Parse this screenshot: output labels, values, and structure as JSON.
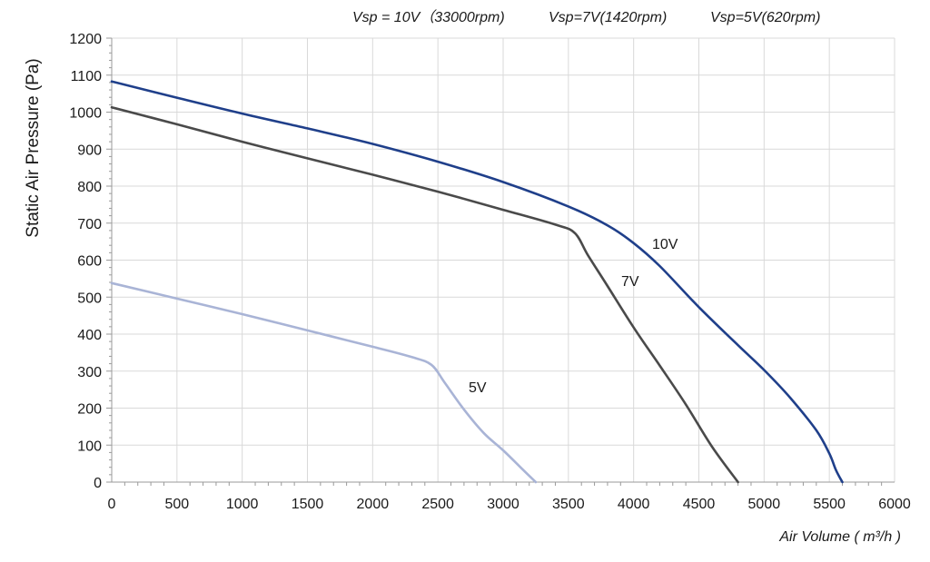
{
  "chart_data": {
    "type": "line",
    "title": "",
    "xlabel": "Air Volume ( m³/h )",
    "ylabel": "Static Air Pressure  (Pa)",
    "xlim": [
      0,
      6000
    ],
    "ylim": [
      0,
      1200
    ],
    "xticks": [
      0,
      500,
      1000,
      1500,
      2000,
      2500,
      3000,
      3500,
      4000,
      4500,
      5000,
      5500,
      6000
    ],
    "yticks": [
      0,
      100,
      200,
      300,
      400,
      500,
      600,
      700,
      800,
      900,
      1000,
      1100,
      1200
    ],
    "grid": true,
    "legend_entries": [
      "Vsp = 10V（33000rpm)",
      "Vsp=7V(1420rpm)",
      "Vsp=5V(620rpm)"
    ],
    "series": [
      {
        "name": "10V",
        "color": "#1f3f8a",
        "x": [
          0,
          500,
          1000,
          1500,
          2000,
          2500,
          3000,
          3500,
          3800,
          4000,
          4200,
          4500,
          4800,
          5000,
          5200,
          5400,
          5500,
          5550,
          5600
        ],
        "y": [
          1083,
          1039,
          996,
          956,
          914,
          866,
          811,
          745,
          694,
          646,
          584,
          473,
          370,
          303,
          228,
          140,
          77,
          33,
          0
        ]
      },
      {
        "name": "7V",
        "color": "#4a4a4a",
        "x": [
          0,
          500,
          1000,
          1500,
          2000,
          2500,
          3000,
          3400,
          3550,
          3650,
          3800,
          4000,
          4200,
          4400,
          4600,
          4800
        ],
        "y": [
          1013,
          967,
          920,
          875,
          831,
          785,
          736,
          696,
          673,
          613,
          530,
          418,
          315,
          210,
          96,
          0
        ]
      },
      {
        "name": "5V",
        "color": "#a9b4d6",
        "x": [
          0,
          500,
          1000,
          1500,
          2000,
          2300,
          2450,
          2550,
          2700,
          2850,
          3000,
          3150,
          3250
        ],
        "y": [
          538,
          496,
          454,
          410,
          366,
          338,
          317,
          270,
          196,
          133,
          86,
          34,
          0
        ]
      }
    ],
    "series_labels": [
      {
        "text": "10V",
        "series": "10V"
      },
      {
        "text": "7V",
        "series": "7V"
      },
      {
        "text": "5V",
        "series": "5V"
      }
    ]
  }
}
